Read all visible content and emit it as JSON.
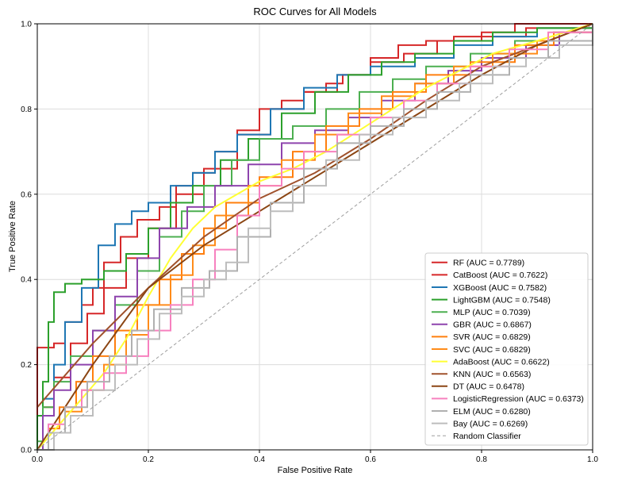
{
  "chart_data": {
    "type": "line",
    "title": "ROC Curves for All Models",
    "xlabel": "False Positive Rate",
    "ylabel": "True Positive Rate",
    "xlim": [
      0.0,
      1.0
    ],
    "ylim": [
      0.0,
      1.0
    ],
    "xticks": [
      "0.0",
      "0.2",
      "0.4",
      "0.6",
      "0.8",
      "1.0"
    ],
    "yticks": [
      "0.0",
      "0.2",
      "0.4",
      "0.6",
      "0.8",
      "1.0"
    ],
    "grid": true,
    "legend_position": "lower-right",
    "series": [
      {
        "name": "RF (AUC = 0.7789)",
        "color": "#d62728",
        "step": true,
        "points": [
          [
            0,
            0
          ],
          [
            0,
            0.24
          ],
          [
            0.03,
            0.25
          ],
          [
            0.05,
            0.3
          ],
          [
            0.08,
            0.34
          ],
          [
            0.1,
            0.38
          ],
          [
            0.12,
            0.44
          ],
          [
            0.15,
            0.5
          ],
          [
            0.18,
            0.54
          ],
          [
            0.22,
            0.57
          ],
          [
            0.25,
            0.62
          ],
          [
            0.28,
            0.65
          ],
          [
            0.32,
            0.7
          ],
          [
            0.36,
            0.75
          ],
          [
            0.4,
            0.8
          ],
          [
            0.44,
            0.82
          ],
          [
            0.48,
            0.84
          ],
          [
            0.52,
            0.86
          ],
          [
            0.55,
            0.88
          ],
          [
            0.6,
            0.92
          ],
          [
            0.65,
            0.95
          ],
          [
            0.7,
            0.96
          ],
          [
            0.75,
            0.97
          ],
          [
            0.8,
            0.98
          ],
          [
            0.86,
            1.0
          ],
          [
            1,
            1.0
          ]
        ]
      },
      {
        "name": "CatBoost (AUC = 0.7622)",
        "color": "#d62728",
        "step": true,
        "points": [
          [
            0,
            0
          ],
          [
            0.01,
            0.1
          ],
          [
            0.03,
            0.17
          ],
          [
            0.06,
            0.25
          ],
          [
            0.09,
            0.32
          ],
          [
            0.12,
            0.38
          ],
          [
            0.16,
            0.45
          ],
          [
            0.2,
            0.52
          ],
          [
            0.25,
            0.6
          ],
          [
            0.3,
            0.66
          ],
          [
            0.36,
            0.74
          ],
          [
            0.42,
            0.8
          ],
          [
            0.48,
            0.84
          ],
          [
            0.54,
            0.88
          ],
          [
            0.6,
            0.91
          ],
          [
            0.66,
            0.93
          ],
          [
            0.72,
            0.96
          ],
          [
            0.8,
            0.97
          ],
          [
            0.88,
            0.99
          ],
          [
            1,
            1.0
          ]
        ]
      },
      {
        "name": "XGBoost (AUC = 0.7582)",
        "color": "#1f77b4",
        "step": true,
        "points": [
          [
            0,
            0
          ],
          [
            0.01,
            0.12
          ],
          [
            0.03,
            0.2
          ],
          [
            0.05,
            0.3
          ],
          [
            0.08,
            0.38
          ],
          [
            0.11,
            0.48
          ],
          [
            0.14,
            0.53
          ],
          [
            0.17,
            0.56
          ],
          [
            0.2,
            0.58
          ],
          [
            0.24,
            0.62
          ],
          [
            0.28,
            0.65
          ],
          [
            0.32,
            0.7
          ],
          [
            0.36,
            0.74
          ],
          [
            0.42,
            0.8
          ],
          [
            0.48,
            0.85
          ],
          [
            0.54,
            0.88
          ],
          [
            0.6,
            0.9
          ],
          [
            0.68,
            0.92
          ],
          [
            0.75,
            0.95
          ],
          [
            0.82,
            0.97
          ],
          [
            0.9,
            0.99
          ],
          [
            1,
            1.0
          ]
        ]
      },
      {
        "name": "LightGBM (AUC = 0.7548)",
        "color": "#2ca02c",
        "step": true,
        "points": [
          [
            0,
            0
          ],
          [
            0,
            0.08
          ],
          [
            0.01,
            0.16
          ],
          [
            0.02,
            0.3
          ],
          [
            0.03,
            0.37
          ],
          [
            0.05,
            0.39
          ],
          [
            0.08,
            0.4
          ],
          [
            0.12,
            0.42
          ],
          [
            0.16,
            0.46
          ],
          [
            0.2,
            0.52
          ],
          [
            0.24,
            0.58
          ],
          [
            0.28,
            0.62
          ],
          [
            0.33,
            0.68
          ],
          [
            0.38,
            0.73
          ],
          [
            0.44,
            0.79
          ],
          [
            0.5,
            0.84
          ],
          [
            0.56,
            0.88
          ],
          [
            0.62,
            0.91
          ],
          [
            0.68,
            0.93
          ],
          [
            0.75,
            0.96
          ],
          [
            0.82,
            0.98
          ],
          [
            0.9,
            0.99
          ],
          [
            1,
            1.0
          ]
        ]
      },
      {
        "name": "MLP (AUC = 0.7039)",
        "color": "#4caf50",
        "step": true,
        "points": [
          [
            0,
            0
          ],
          [
            0,
            0.02
          ],
          [
            0.01,
            0.1
          ],
          [
            0.03,
            0.16
          ],
          [
            0.06,
            0.22
          ],
          [
            0.1,
            0.28
          ],
          [
            0.14,
            0.34
          ],
          [
            0.18,
            0.42
          ],
          [
            0.22,
            0.5
          ],
          [
            0.26,
            0.56
          ],
          [
            0.3,
            0.62
          ],
          [
            0.35,
            0.68
          ],
          [
            0.4,
            0.73
          ],
          [
            0.46,
            0.76
          ],
          [
            0.52,
            0.8
          ],
          [
            0.58,
            0.84
          ],
          [
            0.64,
            0.87
          ],
          [
            0.7,
            0.9
          ],
          [
            0.78,
            0.93
          ],
          [
            0.86,
            0.96
          ],
          [
            0.93,
            0.98
          ],
          [
            1,
            1.0
          ]
        ]
      },
      {
        "name": "GBR (AUC = 0.6867)",
        "color": "#8e44ad",
        "step": true,
        "points": [
          [
            0,
            0
          ],
          [
            0.01,
            0.08
          ],
          [
            0.03,
            0.14
          ],
          [
            0.06,
            0.2
          ],
          [
            0.1,
            0.28
          ],
          [
            0.14,
            0.36
          ],
          [
            0.18,
            0.45
          ],
          [
            0.22,
            0.52
          ],
          [
            0.27,
            0.57
          ],
          [
            0.32,
            0.62
          ],
          [
            0.38,
            0.67
          ],
          [
            0.44,
            0.72
          ],
          [
            0.5,
            0.75
          ],
          [
            0.56,
            0.78
          ],
          [
            0.62,
            0.82
          ],
          [
            0.68,
            0.86
          ],
          [
            0.74,
            0.89
          ],
          [
            0.8,
            0.92
          ],
          [
            0.88,
            0.95
          ],
          [
            0.94,
            0.98
          ],
          [
            1,
            1.0
          ]
        ]
      },
      {
        "name": "SVR (AUC = 0.6829)",
        "color": "#ff7f0e",
        "step": true,
        "points": [
          [
            0,
            0
          ],
          [
            0.02,
            0.05
          ],
          [
            0.04,
            0.1
          ],
          [
            0.07,
            0.16
          ],
          [
            0.1,
            0.22
          ],
          [
            0.14,
            0.28
          ],
          [
            0.18,
            0.34
          ],
          [
            0.22,
            0.4
          ],
          [
            0.26,
            0.46
          ],
          [
            0.3,
            0.52
          ],
          [
            0.34,
            0.58
          ],
          [
            0.4,
            0.64
          ],
          [
            0.46,
            0.7
          ],
          [
            0.52,
            0.76
          ],
          [
            0.58,
            0.8
          ],
          [
            0.64,
            0.84
          ],
          [
            0.7,
            0.88
          ],
          [
            0.78,
            0.91
          ],
          [
            0.86,
            0.95
          ],
          [
            0.93,
            0.98
          ],
          [
            1,
            1.0
          ]
        ]
      },
      {
        "name": "SVC (AUC = 0.6829)",
        "color": "#ff8c1a",
        "step": true,
        "points": [
          [
            0,
            0
          ],
          [
            0.02,
            0.04
          ],
          [
            0.05,
            0.09
          ],
          [
            0.08,
            0.14
          ],
          [
            0.12,
            0.2
          ],
          [
            0.16,
            0.27
          ],
          [
            0.2,
            0.34
          ],
          [
            0.24,
            0.41
          ],
          [
            0.28,
            0.48
          ],
          [
            0.32,
            0.55
          ],
          [
            0.38,
            0.62
          ],
          [
            0.44,
            0.68
          ],
          [
            0.5,
            0.74
          ],
          [
            0.56,
            0.79
          ],
          [
            0.62,
            0.83
          ],
          [
            0.68,
            0.86
          ],
          [
            0.75,
            0.9
          ],
          [
            0.82,
            0.93
          ],
          [
            0.9,
            0.96
          ],
          [
            1,
            1.0
          ]
        ]
      },
      {
        "name": "AdaBoost (AUC = 0.6622)",
        "color": "#ffff33",
        "step": false,
        "points": [
          [
            0,
            0
          ],
          [
            0.04,
            0.06
          ],
          [
            0.08,
            0.12
          ],
          [
            0.12,
            0.18
          ],
          [
            0.16,
            0.26
          ],
          [
            0.2,
            0.36
          ],
          [
            0.24,
            0.45
          ],
          [
            0.28,
            0.52
          ],
          [
            0.32,
            0.57
          ],
          [
            0.36,
            0.6
          ],
          [
            0.4,
            0.63
          ],
          [
            0.46,
            0.66
          ],
          [
            0.52,
            0.7
          ],
          [
            0.58,
            0.75
          ],
          [
            0.64,
            0.8
          ],
          [
            0.7,
            0.85
          ],
          [
            0.76,
            0.89
          ],
          [
            0.82,
            0.93
          ],
          [
            0.9,
            0.96
          ],
          [
            1,
            1.0
          ]
        ]
      },
      {
        "name": "KNN (AUC = 0.6563)",
        "color": "#a0522d",
        "step": false,
        "points": [
          [
            0,
            0.1
          ],
          [
            0.1,
            0.25
          ],
          [
            0.2,
            0.38
          ],
          [
            0.3,
            0.5
          ],
          [
            0.4,
            0.59
          ],
          [
            0.5,
            0.65
          ],
          [
            0.6,
            0.73
          ],
          [
            0.7,
            0.82
          ],
          [
            0.8,
            0.9
          ],
          [
            0.9,
            0.95
          ],
          [
            1,
            1.0
          ]
        ]
      },
      {
        "name": "DT (AUC = 0.6478)",
        "color": "#8b4513",
        "step": false,
        "points": [
          [
            0,
            0
          ],
          [
            0.1,
            0.2
          ],
          [
            0.2,
            0.38
          ],
          [
            0.3,
            0.48
          ],
          [
            0.4,
            0.56
          ],
          [
            0.5,
            0.64
          ],
          [
            0.6,
            0.72
          ],
          [
            0.7,
            0.8
          ],
          [
            0.8,
            0.88
          ],
          [
            0.9,
            0.95
          ],
          [
            1,
            1.0
          ]
        ]
      },
      {
        "name": "LogisticRegression (AUC = 0.6373)",
        "color": "#f781bf",
        "step": true,
        "points": [
          [
            0,
            0
          ],
          [
            0.02,
            0.06
          ],
          [
            0.05,
            0.1
          ],
          [
            0.08,
            0.14
          ],
          [
            0.12,
            0.18
          ],
          [
            0.16,
            0.22
          ],
          [
            0.2,
            0.28
          ],
          [
            0.24,
            0.34
          ],
          [
            0.28,
            0.4
          ],
          [
            0.32,
            0.47
          ],
          [
            0.36,
            0.55
          ],
          [
            0.4,
            0.62
          ],
          [
            0.44,
            0.66
          ],
          [
            0.48,
            0.7
          ],
          [
            0.54,
            0.74
          ],
          [
            0.6,
            0.78
          ],
          [
            0.66,
            0.82
          ],
          [
            0.72,
            0.86
          ],
          [
            0.78,
            0.9
          ],
          [
            0.85,
            0.94
          ],
          [
            0.92,
            0.98
          ],
          [
            1,
            1.0
          ]
        ]
      },
      {
        "name": "ELM (AUC = 0.6280)",
        "color": "#b0b0b0",
        "step": true,
        "points": [
          [
            0,
            0
          ],
          [
            0.02,
            0.04
          ],
          [
            0.05,
            0.1
          ],
          [
            0.09,
            0.16
          ],
          [
            0.13,
            0.22
          ],
          [
            0.17,
            0.28
          ],
          [
            0.21,
            0.33
          ],
          [
            0.26,
            0.38
          ],
          [
            0.31,
            0.42
          ],
          [
            0.36,
            0.5
          ],
          [
            0.42,
            0.58
          ],
          [
            0.48,
            0.66
          ],
          [
            0.54,
            0.72
          ],
          [
            0.6,
            0.76
          ],
          [
            0.66,
            0.8
          ],
          [
            0.72,
            0.84
          ],
          [
            0.78,
            0.88
          ],
          [
            0.85,
            0.92
          ],
          [
            0.92,
            0.96
          ],
          [
            1,
            1.0
          ]
        ]
      },
      {
        "name": "Bay (AUC = 0.6269)",
        "color": "#bdbdbd",
        "step": true,
        "points": [
          [
            0,
            0
          ],
          [
            0.03,
            0.04
          ],
          [
            0.06,
            0.08
          ],
          [
            0.1,
            0.14
          ],
          [
            0.14,
            0.2
          ],
          [
            0.18,
            0.26
          ],
          [
            0.22,
            0.32
          ],
          [
            0.26,
            0.36
          ],
          [
            0.3,
            0.4
          ],
          [
            0.34,
            0.44
          ],
          [
            0.38,
            0.52
          ],
          [
            0.42,
            0.56
          ],
          [
            0.46,
            0.62
          ],
          [
            0.52,
            0.68
          ],
          [
            0.58,
            0.74
          ],
          [
            0.64,
            0.78
          ],
          [
            0.7,
            0.82
          ],
          [
            0.76,
            0.86
          ],
          [
            0.82,
            0.9
          ],
          [
            0.88,
            0.92
          ],
          [
            0.94,
            0.95
          ],
          [
            1,
            1.0
          ]
        ]
      },
      {
        "name": "Random Classifier",
        "color": "#9e9e9e",
        "dashed": true,
        "step": false,
        "points": [
          [
            0,
            0
          ],
          [
            1,
            1
          ]
        ]
      }
    ]
  }
}
